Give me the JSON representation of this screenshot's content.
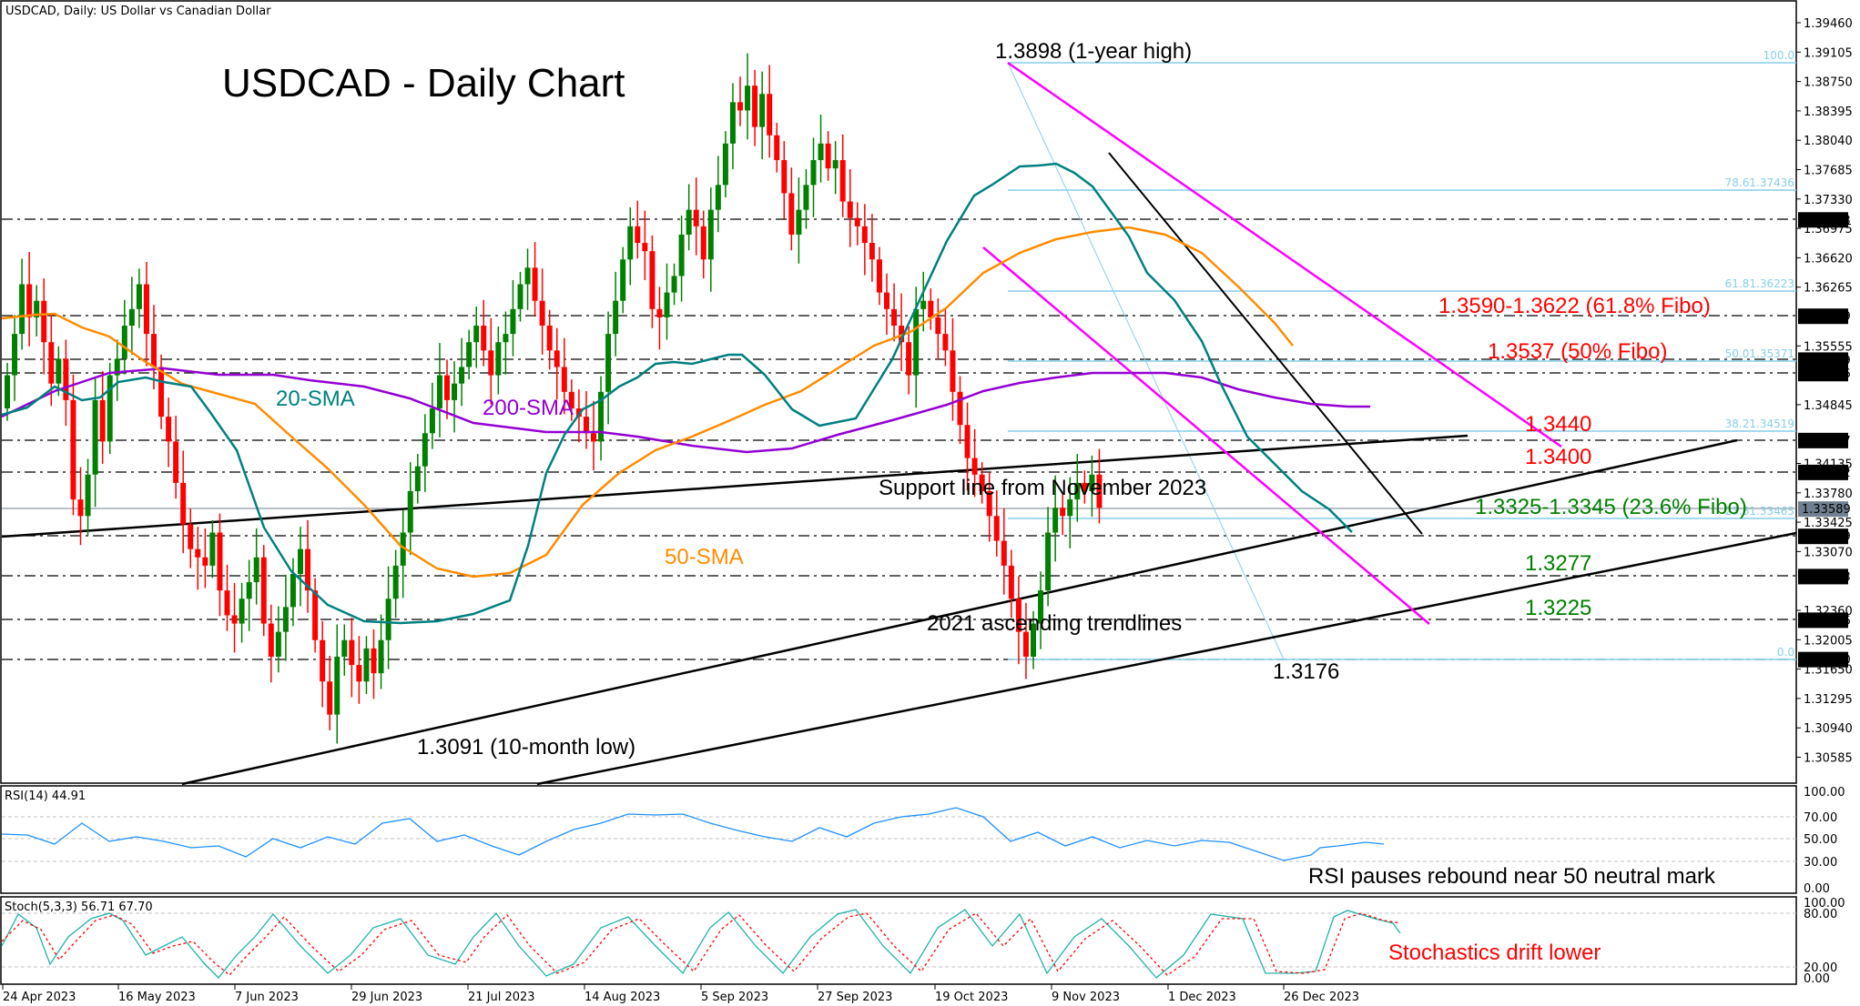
{
  "header": {
    "symbol_line": "USDCAD, Daily:  US Dollar vs Canadian Dollar",
    "title": "USDCAD - Daily Chart"
  },
  "colors": {
    "bull": "#008000",
    "bear": "#ff0000",
    "sma20": "#008080",
    "sma50": "#ff8c00",
    "sma200": "#9400d3",
    "channel": "#ff00ff",
    "fibo": "#87ceeb",
    "resistance_label": "#ff0000",
    "support_label": "#008000",
    "rsi": "#1e90ff",
    "stoch_main": "#20b2aa",
    "stoch_signal": "#ff0000"
  },
  "annotations": {
    "high": "1.3898 (1-year high)",
    "low10m": "1.3091 (10-month low)",
    "low": "1.3176",
    "sma20": "20-SMA",
    "sma50": "50-SMA",
    "sma200": "200-SMA",
    "support_nov": "Support line from November 2023",
    "trend2021": "2021 ascending trendlines",
    "r_618": "1.3590-1.3622 (61.8% Fibo)",
    "r_50": "1.3537 (50% Fibo)",
    "r_1": "1.3440",
    "r_2": "1.3400",
    "s_236": "1.3325-1.3345 (23.6% Fibo)",
    "s_1": "1.3277",
    "s_2": "1.3225",
    "rsi_note": "RSI pauses rebound near 50 neutral mark",
    "stoch_note": "Stochastics drift lower"
  },
  "fibo_labels": [
    {
      "text": "100.0",
      "price": 1.3898
    },
    {
      "text": "78.61.37436",
      "price": 1.37436
    },
    {
      "text": "61.81.36223",
      "price": 1.36223
    },
    {
      "text": "50.01.35371",
      "price": 1.35371
    },
    {
      "text": "38.21.34519",
      "price": 1.34519
    },
    {
      "text": "23.61.33465",
      "price": 1.33465
    },
    {
      "text": "0.0",
      "price": 1.3177
    }
  ],
  "price_scale": {
    "ticks": [
      "1.39460",
      "1.39105",
      "1.38750",
      "1.38395",
      "1.38040",
      "1.37685",
      "1.37330",
      "1.36975",
      "1.36620",
      "1.36265",
      "1.35555",
      "1.34845",
      "1.34135",
      "1.33780",
      "1.33425",
      "1.33070",
      "1.32360",
      "1.32005",
      "1.31650",
      "1.31295",
      "1.30940",
      "1.30585"
    ],
    "marked_levels": [
      "1.37083",
      "1.35919",
      "1.35389",
      "1.35226",
      "1.34417",
      "1.34032",
      "1.33259",
      "1.32773",
      "1.32246",
      "1.31770"
    ],
    "current_price": "1.33589"
  },
  "rsi": {
    "label": "RSI(14) 44.91",
    "ticks": [
      "100.00",
      "70.00",
      "50.00",
      "30.00",
      "0.00"
    ]
  },
  "stoch": {
    "label": "Stoch(5,3,3) 56.71 67.70",
    "ticks": [
      "100.00",
      "80.00",
      "20.00",
      "0.00"
    ]
  },
  "date_axis": [
    "24 Apr 2023",
    "16 May 2023",
    "7 Jun 2023",
    "29 Jun 2023",
    "21 Jul 2023",
    "14 Aug 2023",
    "5 Sep 2023",
    "27 Sep 2023",
    "19 Oct 2023",
    "9 Nov 2023",
    "1 Dec 2023",
    "26 Dec 2023"
  ],
  "chart_data": {
    "type": "candlestick",
    "title": "USDCAD - Daily Chart",
    "subtitle": "USDCAD, Daily: US Dollar vs Canadian Dollar",
    "x_range": [
      "24 Apr 2023",
      "early Jan 2024"
    ],
    "ylim": [
      1.304,
      1.396
    ],
    "close_approx": [
      1.352,
      1.357,
      1.363,
      1.359,
      1.361,
      1.356,
      1.351,
      1.354,
      1.349,
      1.337,
      1.335,
      1.34,
      1.349,
      1.344,
      1.352,
      1.354,
      1.358,
      1.36,
      1.363,
      1.357,
      1.353,
      1.347,
      1.344,
      1.339,
      1.334,
      1.331,
      1.33,
      1.329,
      1.333,
      1.326,
      1.323,
      1.322,
      1.325,
      1.327,
      1.33,
      1.322,
      1.318,
      1.321,
      1.324,
      1.328,
      1.331,
      1.326,
      1.32,
      1.315,
      1.311,
      1.318,
      1.32,
      1.317,
      1.315,
      1.319,
      1.316,
      1.32,
      1.325,
      1.329,
      1.333,
      1.338,
      1.341,
      1.345,
      1.348,
      1.352,
      1.349,
      1.351,
      1.353,
      1.356,
      1.358,
      1.355,
      1.352,
      1.356,
      1.357,
      1.36,
      1.363,
      1.365,
      1.361,
      1.358,
      1.355,
      1.353,
      1.35,
      1.348,
      1.347,
      1.345,
      1.344,
      1.35,
      1.357,
      1.361,
      1.366,
      1.37,
      1.368,
      1.367,
      1.36,
      1.359,
      1.362,
      1.364,
      1.369,
      1.372,
      1.37,
      1.366,
      1.372,
      1.375,
      1.38,
      1.385,
      1.384,
      1.387,
      1.382,
      1.386,
      1.381,
      1.378,
      1.374,
      1.369,
      1.372,
      1.375,
      1.378,
      1.38,
      1.377,
      1.378,
      1.373,
      1.371,
      1.37,
      1.368,
      1.366,
      1.362,
      1.36,
      1.358,
      1.356,
      1.352,
      1.36,
      1.361,
      1.359,
      1.357,
      1.355,
      1.35,
      1.346,
      1.342,
      1.34,
      1.338,
      1.335,
      1.332,
      1.329,
      1.325,
      1.321,
      1.318,
      1.322,
      1.326,
      1.333,
      1.336,
      1.335,
      1.337,
      1.339,
      1.338,
      1.34,
      1.336
    ],
    "levels": {
      "one_year_high": 1.3898,
      "ten_month_low": 1.3091,
      "recent_low": 1.3176,
      "resistances": [
        1.3622,
        1.359,
        1.3537,
        1.344,
        1.34
      ],
      "supports": [
        1.3345,
        1.3325,
        1.3277,
        1.3225
      ]
    },
    "fibonacci": {
      "from": 1.3898,
      "to": 1.3177,
      "levels": {
        "0.0": 1.3177,
        "23.6": 1.33465,
        "38.2": 1.34519,
        "50.0": 1.35371,
        "61.8": 1.36223,
        "78.6": 1.37436,
        "100.0": 1.3898
      }
    },
    "moving_averages": [
      {
        "name": "20-SMA",
        "end_value": 1.333
      },
      {
        "name": "50-SMA",
        "end_value": 1.353
      },
      {
        "name": "200-SMA",
        "end_value": 1.348
      }
    ],
    "indicators": {
      "RSI(14)": 44.91,
      "Stoch(5,3,3)": {
        "k": 56.71,
        "d": 67.7
      }
    },
    "legend_position": "none",
    "grid": false
  }
}
